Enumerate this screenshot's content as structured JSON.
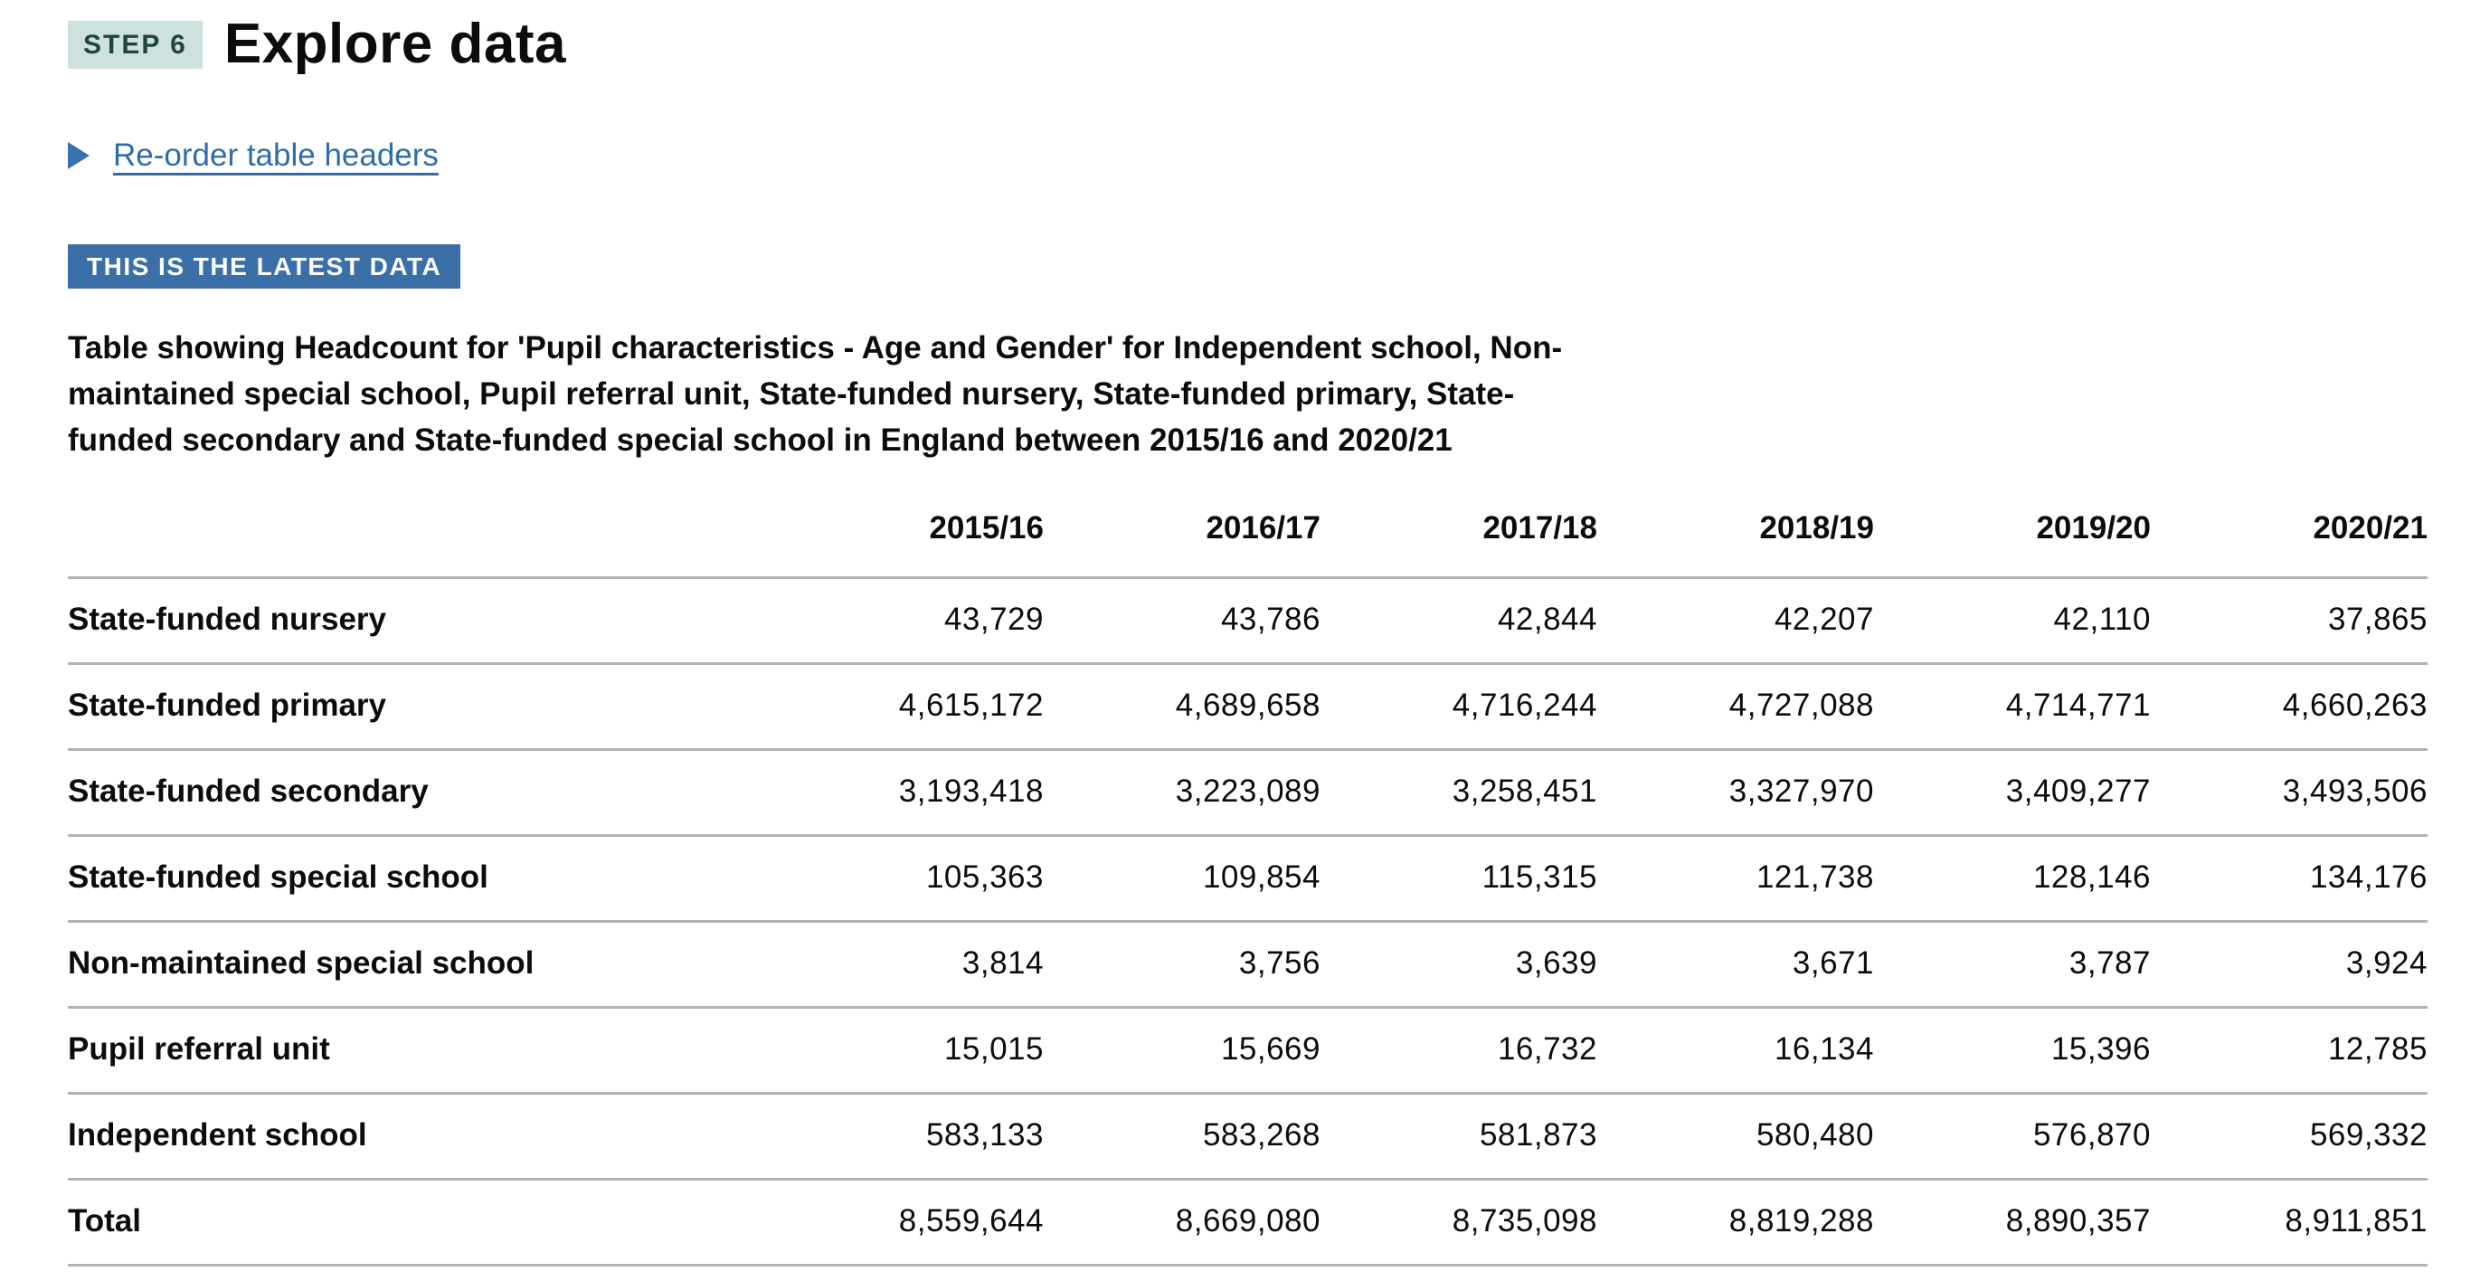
{
  "header": {
    "step_badge": "STEP 6",
    "title": "Explore data"
  },
  "details": {
    "toggle_label": "Re-order table headers"
  },
  "status_badge": {
    "label": "THIS IS THE LATEST DATA"
  },
  "caption_display": "Table showing Headcount for 'Pupil characteristics - Age and Gender' for Independent school, Non-\nmaintained special school, Pupil referral unit, State-funded nursery, State-funded primary, State-\nfunded secondary and State-funded special school in England between 2015/16 and 2020/21",
  "chart_data": {
    "type": "table",
    "title": "Table showing Headcount for 'Pupil characteristics - Age and Gender' for Independent school, Non-maintained special school, Pupil referral unit, State-funded nursery, State-funded primary, State-funded secondary and State-funded special school in England between 2015/16 and 2020/21",
    "columns": [
      "2015/16",
      "2016/17",
      "2017/18",
      "2018/19",
      "2019/20",
      "2020/21"
    ],
    "rows": [
      {
        "label": "State-funded nursery",
        "values": [
          "43,729",
          "43,786",
          "42,844",
          "42,207",
          "42,110",
          "37,865"
        ]
      },
      {
        "label": "State-funded primary",
        "values": [
          "4,615,172",
          "4,689,658",
          "4,716,244",
          "4,727,088",
          "4,714,771",
          "4,660,263"
        ]
      },
      {
        "label": "State-funded secondary",
        "values": [
          "3,193,418",
          "3,223,089",
          "3,258,451",
          "3,327,970",
          "3,409,277",
          "3,493,506"
        ]
      },
      {
        "label": "State-funded special school",
        "values": [
          "105,363",
          "109,854",
          "115,315",
          "121,738",
          "128,146",
          "134,176"
        ]
      },
      {
        "label": "Non-maintained special school",
        "values": [
          "3,814",
          "3,756",
          "3,639",
          "3,671",
          "3,787",
          "3,924"
        ]
      },
      {
        "label": "Pupil referral unit",
        "values": [
          "15,015",
          "15,669",
          "16,732",
          "16,134",
          "15,396",
          "12,785"
        ]
      },
      {
        "label": "Independent school",
        "values": [
          "583,133",
          "583,268",
          "581,873",
          "580,480",
          "576,870",
          "569,332"
        ]
      },
      {
        "label": "Total",
        "values": [
          "8,559,644",
          "8,669,080",
          "8,735,098",
          "8,819,288",
          "8,890,357",
          "8,911,851"
        ]
      }
    ]
  },
  "colors": {
    "step_badge_bg": "#cde2de",
    "step_badge_text": "#1f4540",
    "latest_badge_bg": "#3a6fa7",
    "link_blue": "#2e6caa",
    "arrow_blue": "#3a70ad",
    "rule_gray": "#b1b4b6",
    "text": "#0b0c0c"
  }
}
